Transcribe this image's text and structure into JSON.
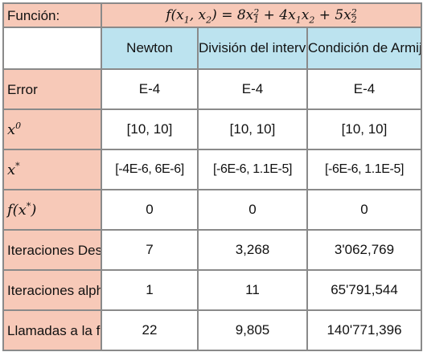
{
  "function_row": {
    "label": "Función:"
  },
  "columns": [
    {
      "header": "Newton"
    },
    {
      "header": "División del intervalo"
    },
    {
      "header": "Condición de Armijo"
    }
  ],
  "rows": [
    {
      "label": "Error",
      "values": [
        "E-4",
        "E-4",
        "E-4"
      ]
    },
    {
      "label_math": "x0",
      "values": [
        "[10, 10]",
        "[10, 10]",
        "[10, 10]"
      ]
    },
    {
      "label_math": "x*",
      "values": [
        "[-4E-6, 6E-6]",
        "[-6E-6, 1.1E-5]",
        "[-6E-6, 1.1E-5]"
      ]
    },
    {
      "label_math": "f(x*)",
      "values": [
        "0",
        "0",
        "0"
      ]
    },
    {
      "label": "Iteraciones Descenso",
      "values": [
        "7",
        "3,268",
        "3'062,769"
      ]
    },
    {
      "label": "Iteraciones alpha",
      "values": [
        "1",
        "11",
        "65'791,544"
      ]
    },
    {
      "label": "Llamadas a la función",
      "values": [
        "22",
        "9,805",
        "140'771,396"
      ]
    }
  ]
}
